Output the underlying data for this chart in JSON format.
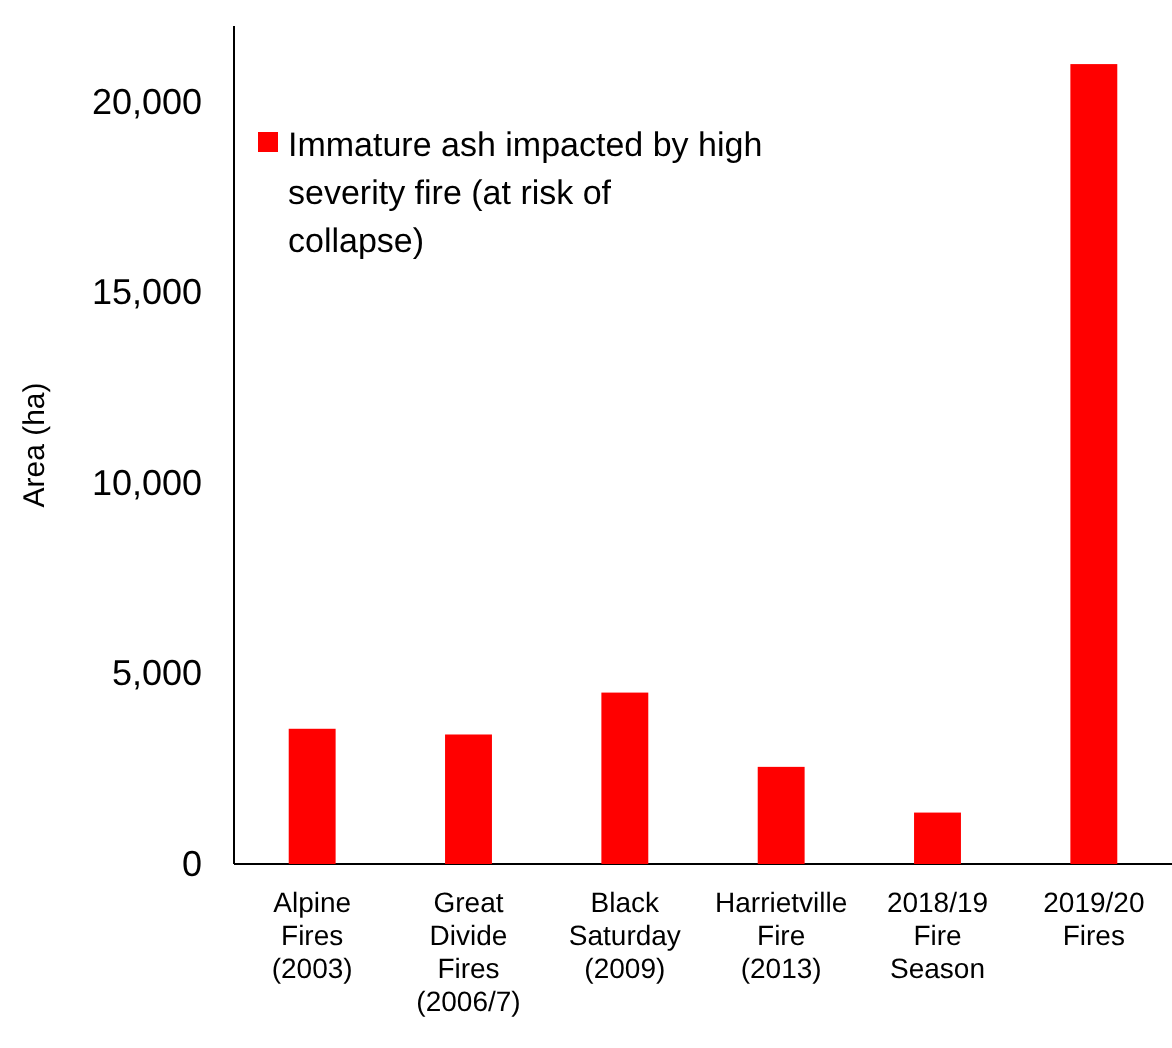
{
  "chart_data": {
    "type": "bar",
    "ylabel": "Area (ha)",
    "categories": [
      "Alpine Fires (2003)",
      "Great Divide Fires (2006/7)",
      "Black Saturday (2009)",
      "Harrietville Fire (2013)",
      "2018/19 Fire Season",
      "2019/20 Fires"
    ],
    "series": [
      {
        "name": "Immature ash impacted by high severity fire (at risk of collapse)",
        "color": "#ff0000",
        "values": [
          3550,
          3400,
          4500,
          2550,
          1350,
          21000
        ]
      }
    ],
    "ylim": [
      0,
      22000
    ],
    "yticks": [
      {
        "value": 0,
        "label": "0"
      },
      {
        "value": 5000,
        "label": "5,000"
      },
      {
        "value": 10000,
        "label": "10,000"
      },
      {
        "value": 15000,
        "label": "15,000"
      },
      {
        "value": 20000,
        "label": "20,000"
      }
    ],
    "grid": false,
    "legend": "top left"
  }
}
